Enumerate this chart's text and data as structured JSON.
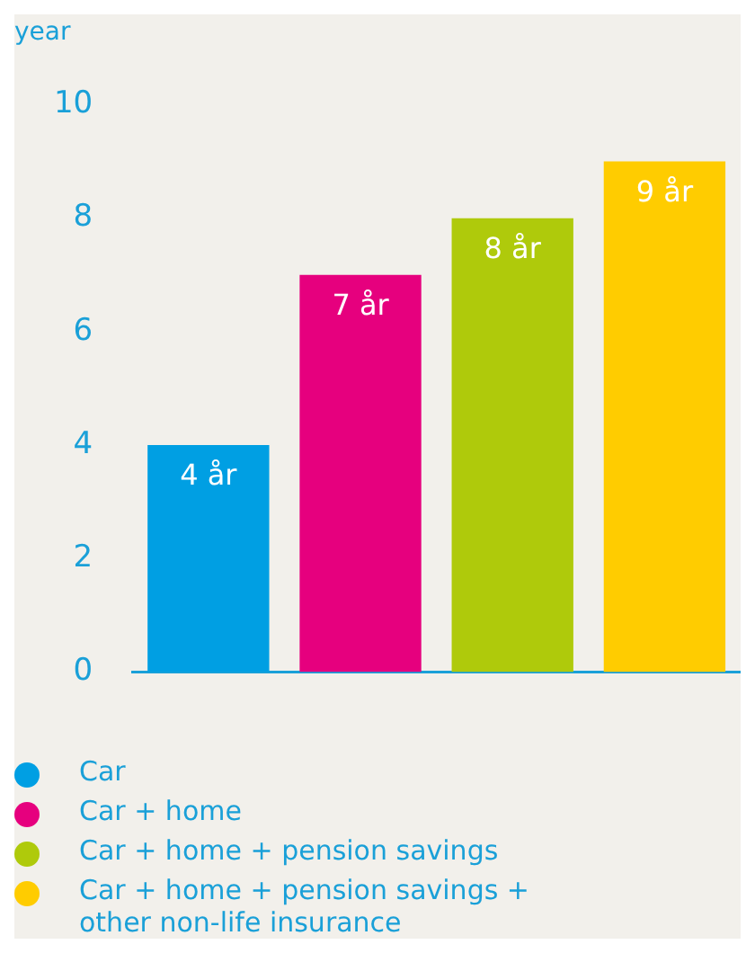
{
  "chart_data": {
    "type": "bar",
    "ylabel": "year",
    "categories": [
      null,
      null,
      null,
      null
    ],
    "series": [
      {
        "name": "Car",
        "color": "#009fe3",
        "values": [
          4,
          null,
          null,
          null
        ],
        "value_labels": [
          "4 år",
          null,
          null,
          null
        ]
      },
      {
        "name": "Car + home",
        "color": "#e6007e",
        "values": [
          null,
          7,
          null,
          null
        ],
        "value_labels": [
          null,
          "7 år",
          null,
          null
        ]
      },
      {
        "name": "Car + home + pension savings",
        "color": "#afca0b",
        "values": [
          null,
          null,
          8,
          null
        ],
        "value_labels": [
          null,
          null,
          "8 år",
          null
        ]
      },
      {
        "name": "Car + home + pension savings + other non-life insurance",
        "color": "#ffcc00",
        "values": [
          null,
          null,
          null,
          9
        ],
        "value_labels": [
          null,
          null,
          null,
          "9 år"
        ]
      }
    ],
    "ylim": [
      0,
      10
    ],
    "yticks": [
      0,
      2,
      4,
      6,
      8,
      10
    ],
    "grid": false,
    "legend": "bottom"
  }
}
